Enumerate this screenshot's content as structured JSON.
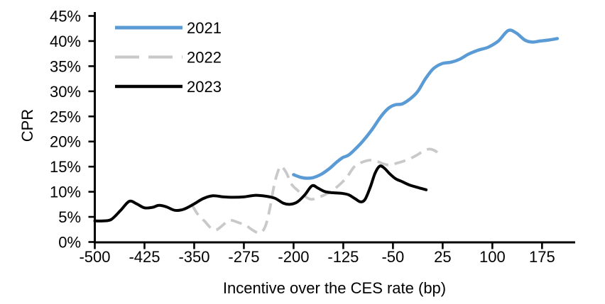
{
  "chart_data": {
    "type": "line",
    "title": "",
    "xlabel": "Incentive over the CES rate (bp)",
    "ylabel": "CPR",
    "xlim": [
      -500,
      225
    ],
    "ylim": [
      0,
      45
    ],
    "grid": false,
    "legend_position": "top-left-inside",
    "x_ticks": [
      -500,
      -425,
      -350,
      -275,
      -200,
      -125,
      -50,
      25,
      100,
      175
    ],
    "x_tick_labels": [
      "-500",
      "-425",
      "-350",
      "-275",
      "-200",
      "-125",
      "-50",
      "25",
      "100",
      "175"
    ],
    "y_ticks": [
      0,
      5,
      10,
      15,
      20,
      25,
      30,
      35,
      40,
      45
    ],
    "y_tick_labels": [
      "0%",
      "5%",
      "10%",
      "15%",
      "20%",
      "25%",
      "30%",
      "35%",
      "40%",
      "45%"
    ],
    "series": [
      {
        "name": "2021",
        "color": "#5B9BD5",
        "style": "solid",
        "points": [
          [
            -200,
            13.4
          ],
          [
            -190,
            12.9
          ],
          [
            -181,
            12.7
          ],
          [
            -171,
            12.8
          ],
          [
            -158,
            13.5
          ],
          [
            -146,
            14.6
          ],
          [
            -135,
            15.9
          ],
          [
            -126,
            16.8
          ],
          [
            -117,
            17.3
          ],
          [
            -106,
            18.6
          ],
          [
            -94,
            20.3
          ],
          [
            -81,
            22.5
          ],
          [
            -68,
            25.0
          ],
          [
            -57,
            26.6
          ],
          [
            -47,
            27.3
          ],
          [
            -36,
            27.5
          ],
          [
            -25,
            28.4
          ],
          [
            -13,
            29.9
          ],
          [
            -1,
            32.5
          ],
          [
            11,
            34.5
          ],
          [
            24,
            35.5
          ],
          [
            38,
            35.8
          ],
          [
            51,
            36.4
          ],
          [
            64,
            37.4
          ],
          [
            79,
            38.2
          ],
          [
            94,
            38.8
          ],
          [
            109,
            40.0
          ],
          [
            124,
            42.1
          ],
          [
            136,
            41.6
          ],
          [
            149,
            40.2
          ],
          [
            160,
            39.8
          ],
          [
            172,
            40.0
          ],
          [
            185,
            40.2
          ],
          [
            198,
            40.5
          ]
        ]
      },
      {
        "name": "2022",
        "color": "#C9C9C9",
        "style": "dashed",
        "points": [
          [
            -353,
            7.3
          ],
          [
            -344,
            5.4
          ],
          [
            -334,
            4.1
          ],
          [
            -325,
            2.8
          ],
          [
            -317,
            2.4
          ],
          [
            -309,
            3.1
          ],
          [
            -300,
            4.1
          ],
          [
            -293,
            4.3
          ],
          [
            -284,
            3.9
          ],
          [
            -272,
            3.3
          ],
          [
            -261,
            2.3
          ],
          [
            -251,
            1.8
          ],
          [
            -243,
            3.0
          ],
          [
            -236,
            6.5
          ],
          [
            -229,
            11.5
          ],
          [
            -222,
            14.6
          ],
          [
            -218,
            15.0
          ],
          [
            -211,
            13.8
          ],
          [
            -203,
            11.5
          ],
          [
            -194,
            10.3
          ],
          [
            -184,
            9.2
          ],
          [
            -174,
            8.5
          ],
          [
            -164,
            8.8
          ],
          [
            -153,
            9.4
          ],
          [
            -141,
            10.3
          ],
          [
            -129,
            11.6
          ],
          [
            -119,
            13.0
          ],
          [
            -109,
            14.9
          ],
          [
            -101,
            15.6
          ],
          [
            -92,
            16.1
          ],
          [
            -83,
            16.3
          ],
          [
            -73,
            16.0
          ],
          [
            -63,
            15.5
          ],
          [
            -54,
            15.3
          ],
          [
            -44,
            15.7
          ],
          [
            -34,
            16.1
          ],
          [
            -24,
            16.6
          ],
          [
            -14,
            17.3
          ],
          [
            -4,
            18.1
          ],
          [
            5,
            18.5
          ],
          [
            13,
            18.2
          ],
          [
            20,
            17.5
          ]
        ]
      },
      {
        "name": "2023",
        "color": "#000000",
        "style": "solid",
        "points": [
          [
            -500,
            4.2
          ],
          [
            -488,
            4.2
          ],
          [
            -475,
            4.5
          ],
          [
            -461,
            6.3
          ],
          [
            -448,
            8.1
          ],
          [
            -437,
            7.6
          ],
          [
            -425,
            6.8
          ],
          [
            -413,
            6.9
          ],
          [
            -403,
            7.3
          ],
          [
            -392,
            7.0
          ],
          [
            -379,
            6.3
          ],
          [
            -366,
            6.5
          ],
          [
            -351,
            7.5
          ],
          [
            -337,
            8.6
          ],
          [
            -322,
            9.2
          ],
          [
            -307,
            9.0
          ],
          [
            -291,
            8.9
          ],
          [
            -274,
            9.0
          ],
          [
            -257,
            9.3
          ],
          [
            -241,
            9.1
          ],
          [
            -228,
            8.7
          ],
          [
            -215,
            7.7
          ],
          [
            -205,
            7.5
          ],
          [
            -194,
            8.0
          ],
          [
            -183,
            9.4
          ],
          [
            -172,
            11.2
          ],
          [
            -163,
            10.7
          ],
          [
            -152,
            10.0
          ],
          [
            -140,
            9.8
          ],
          [
            -128,
            9.7
          ],
          [
            -117,
            9.4
          ],
          [
            -107,
            8.6
          ],
          [
            -99,
            8.0
          ],
          [
            -92,
            8.5
          ],
          [
            -84,
            11.0
          ],
          [
            -77,
            13.7
          ],
          [
            -70,
            15.1
          ],
          [
            -63,
            14.7
          ],
          [
            -55,
            13.6
          ],
          [
            -46,
            12.6
          ],
          [
            -36,
            12.0
          ],
          [
            -26,
            11.4
          ],
          [
            -14,
            10.9
          ],
          [
            0,
            10.4
          ]
        ]
      }
    ]
  }
}
